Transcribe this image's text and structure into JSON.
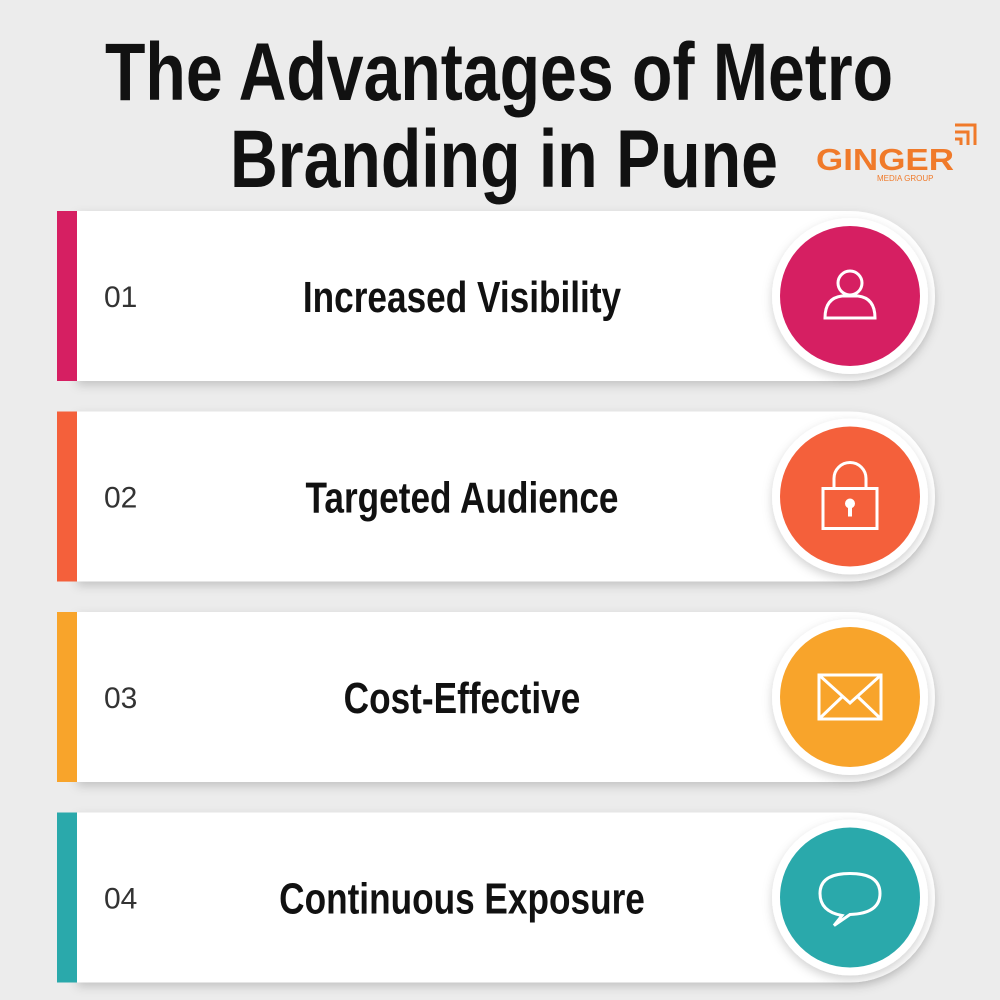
{
  "header": {
    "title_lines": [
      "The Advantages of Metro",
      "Branding in Pune"
    ]
  },
  "logo": {
    "name": "GINGER",
    "tagline": "MEDIA GROUP"
  },
  "items": [
    {
      "number": "01",
      "label": "Increased Visibility",
      "color": "#d61f62"
    },
    {
      "number": "02",
      "label": "Targeted Audience",
      "color": "#f4603b"
    },
    {
      "number": "03",
      "label": "Cost-Effective",
      "color": "#f8a42b"
    },
    {
      "number": "04",
      "label": "Continuous Exposure",
      "color": "#2aa9ab"
    }
  ]
}
